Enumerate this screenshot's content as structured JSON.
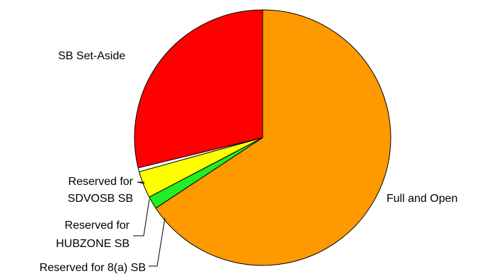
{
  "chart_data": {
    "type": "pie",
    "direction": "clockwise",
    "start_angle_deg": 90,
    "slices": [
      {
        "label": "Full and Open",
        "value": 65.7,
        "color": "#FF9900"
      },
      {
        "label": "Reserved for 8(a) SB",
        "value": 1.6,
        "color": "#22EE22"
      },
      {
        "label": "Reserved for HUBZONE SB",
        "value": 3.4,
        "color": "#FFFF00"
      },
      {
        "label": "Reserved for SDVOSB SB",
        "value": 0.5,
        "color": "#FFFFFF"
      },
      {
        "label": "SB Set-Aside",
        "value": 28.8,
        "color": "#FF0000"
      }
    ],
    "labels": {
      "full_open": "Full and Open",
      "sb8a": "Reserved for 8(a) SB",
      "hubzone_l1": "Reserved for",
      "hubzone_l2": "HUBZONE SB",
      "sdvosb_l1": "Reserved for",
      "sdvosb_l2": "SDVOSB SB",
      "sb_setaside": "SB Set-Aside"
    }
  }
}
